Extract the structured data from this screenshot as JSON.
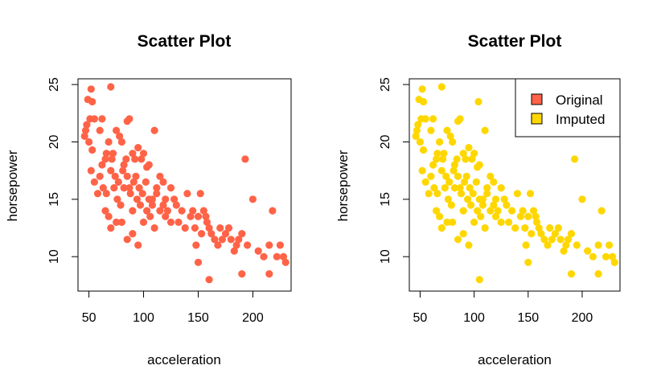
{
  "chart_data": [
    {
      "type": "scatter",
      "title": "Scatter Plot",
      "xlabel": "acceleration",
      "ylabel": "horsepower",
      "xlim": [
        40,
        235
      ],
      "ylim": [
        7,
        25.5
      ],
      "xticks": [
        50,
        100,
        150,
        200
      ],
      "yticks": [
        10,
        15,
        20,
        25
      ],
      "grid": false,
      "series": [
        {
          "color": "#FF6347",
          "points": [
            [
              46,
              20.5
            ],
            [
              47,
              21
            ],
            [
              48,
              21.5
            ],
            [
              49,
              23.7
            ],
            [
              52,
              24.6
            ],
            [
              53,
              23.5
            ],
            [
              51,
              22
            ],
            [
              53,
              19.3
            ],
            [
              55,
              22
            ],
            [
              50,
              20
            ],
            [
              52,
              17.5
            ],
            [
              55,
              16.5
            ],
            [
              58,
              15.5
            ],
            [
              60,
              21
            ],
            [
              62,
              22
            ],
            [
              65,
              18.5
            ],
            [
              68,
              20
            ],
            [
              70,
              24.8
            ],
            [
              72,
              19
            ],
            [
              75,
              21
            ],
            [
              78,
              20.5
            ],
            [
              80,
              20
            ],
            [
              82,
              18
            ],
            [
              85,
              21.8
            ],
            [
              87,
              22
            ],
            [
              90,
              19
            ],
            [
              92,
              18.5
            ],
            [
              95,
              19.5
            ],
            [
              98,
              18.5
            ],
            [
              100,
              19
            ],
            [
              103,
              17.8
            ],
            [
              105,
              18
            ],
            [
              108,
              15
            ],
            [
              110,
              21
            ],
            [
              112,
              16
            ],
            [
              115,
              17
            ],
            [
              118,
              16.5
            ],
            [
              120,
              15
            ],
            [
              125,
              16
            ],
            [
              130,
              14.5
            ],
            [
              135,
              14
            ],
            [
              140,
              15.5
            ],
            [
              145,
              14
            ],
            [
              150,
              13.5
            ],
            [
              152,
              15.5
            ],
            [
              155,
              14
            ],
            [
              158,
              13
            ],
            [
              160,
              12.5
            ],
            [
              165,
              11.5
            ],
            [
              170,
              12.5
            ],
            [
              175,
              12
            ],
            [
              180,
              11.5
            ],
            [
              185,
              11
            ],
            [
              190,
              12
            ],
            [
              193,
              18.5
            ],
            [
              195,
              11
            ],
            [
              200,
              15
            ],
            [
              205,
              10.5
            ],
            [
              210,
              10
            ],
            [
              215,
              11
            ],
            [
              218,
              14
            ],
            [
              222,
              10
            ],
            [
              225,
              11
            ],
            [
              228,
              10
            ],
            [
              230,
              9.5
            ],
            [
              60,
              17
            ],
            [
              63,
              16
            ],
            [
              66,
              15.5
            ],
            [
              70,
              17.5
            ],
            [
              73,
              16
            ],
            [
              76,
              15
            ],
            [
              79,
              14.5
            ],
            [
              82,
              16
            ],
            [
              85,
              17
            ],
            [
              88,
              15.5
            ],
            [
              91,
              16.5
            ],
            [
              94,
              15
            ],
            [
              97,
              14.5
            ],
            [
              100,
              13
            ],
            [
              103,
              14
            ],
            [
              106,
              13.5
            ],
            [
              110,
              12.5
            ],
            [
              115,
              14
            ],
            [
              120,
              13.5
            ],
            [
              125,
              13
            ],
            [
              70,
              12.5
            ],
            [
              80,
              13
            ],
            [
              85,
              11.5
            ],
            [
              90,
              12
            ],
            [
              95,
              11
            ],
            [
              148,
              11
            ],
            [
              150,
              9.5
            ],
            [
              160,
              8
            ],
            [
              190,
              8.5
            ],
            [
              215,
              8.5
            ],
            [
              65,
              14
            ],
            [
              68,
              13.5
            ],
            [
              75,
              13
            ],
            [
              62,
              18
            ],
            [
              66,
              19
            ],
            [
              71,
              18.5
            ],
            [
              74,
              17
            ],
            [
              77,
              16.5
            ],
            [
              81,
              17.5
            ],
            [
              84,
              18.5
            ],
            [
              87,
              16
            ],
            [
              90,
              14
            ],
            [
              93,
              17
            ],
            [
              96,
              16
            ],
            [
              99,
              15.5
            ],
            [
              102,
              16.5
            ],
            [
              105,
              15
            ],
            [
              108,
              14.5
            ],
            [
              112,
              15.5
            ],
            [
              118,
              14.5
            ],
            [
              122,
              14
            ],
            [
              128,
              15
            ],
            [
              132,
              13
            ],
            [
              138,
              12.5
            ],
            [
              143,
              13.5
            ],
            [
              147,
              12.5
            ],
            [
              153,
              12
            ],
            [
              157,
              13.5
            ],
            [
              162,
              12
            ],
            [
              168,
              11
            ],
            [
              172,
              11.5
            ],
            [
              178,
              12.5
            ],
            [
              183,
              10.5
            ],
            [
              187,
              11.5
            ]
          ]
        }
      ]
    },
    {
      "type": "scatter",
      "title": "Scatter Plot",
      "xlabel": "acceleration",
      "ylabel": "horsepower",
      "xlim": [
        40,
        235
      ],
      "ylim": [
        7,
        25.5
      ],
      "xticks": [
        50,
        100,
        150,
        200
      ],
      "yticks": [
        10,
        15,
        20,
        25
      ],
      "grid": false,
      "legend": {
        "position": "top-right",
        "items": [
          {
            "label": "Original",
            "color": "#FF6347"
          },
          {
            "label": "Imputed",
            "color": "#FFD700"
          }
        ]
      },
      "series": [
        {
          "color": "#FFD700",
          "points": [
            [
              46,
              20.5
            ],
            [
              47,
              21
            ],
            [
              48,
              21.5
            ],
            [
              49,
              23.7
            ],
            [
              52,
              24.6
            ],
            [
              53,
              23.5
            ],
            [
              51,
              22
            ],
            [
              53,
              19.3
            ],
            [
              55,
              22
            ],
            [
              50,
              20
            ],
            [
              52,
              17.5
            ],
            [
              55,
              16.5
            ],
            [
              58,
              15.5
            ],
            [
              60,
              21
            ],
            [
              62,
              22
            ],
            [
              65,
              18.5
            ],
            [
              68,
              20
            ],
            [
              70,
              24.8
            ],
            [
              72,
              19
            ],
            [
              75,
              21
            ],
            [
              78,
              20.5
            ],
            [
              80,
              20
            ],
            [
              82,
              18
            ],
            [
              85,
              21.8
            ],
            [
              87,
              22
            ],
            [
              90,
              19
            ],
            [
              92,
              18.5
            ],
            [
              95,
              19.5
            ],
            [
              98,
              18.5
            ],
            [
              100,
              19
            ],
            [
              103,
              17.8
            ],
            [
              105,
              18
            ],
            [
              104,
              23.5
            ],
            [
              108,
              15
            ],
            [
              110,
              21
            ],
            [
              112,
              16
            ],
            [
              115,
              17
            ],
            [
              118,
              16.5
            ],
            [
              120,
              15
            ],
            [
              125,
              16
            ],
            [
              130,
              14.5
            ],
            [
              135,
              14
            ],
            [
              140,
              15.5
            ],
            [
              145,
              14
            ],
            [
              150,
              13.5
            ],
            [
              152,
              15.5
            ],
            [
              155,
              14
            ],
            [
              158,
              13
            ],
            [
              160,
              12.5
            ],
            [
              165,
              11.5
            ],
            [
              170,
              12.5
            ],
            [
              175,
              12
            ],
            [
              180,
              11.5
            ],
            [
              185,
              11
            ],
            [
              190,
              12
            ],
            [
              193,
              18.5
            ],
            [
              195,
              11
            ],
            [
              200,
              15
            ],
            [
              205,
              10.5
            ],
            [
              210,
              10
            ],
            [
              215,
              11
            ],
            [
              218,
              14
            ],
            [
              222,
              10
            ],
            [
              225,
              11
            ],
            [
              228,
              10
            ],
            [
              230,
              9.5
            ],
            [
              60,
              17
            ],
            [
              63,
              16
            ],
            [
              66,
              15.5
            ],
            [
              70,
              17.5
            ],
            [
              73,
              16
            ],
            [
              76,
              15
            ],
            [
              79,
              14.5
            ],
            [
              82,
              16
            ],
            [
              85,
              17
            ],
            [
              88,
              15.5
            ],
            [
              91,
              16.5
            ],
            [
              94,
              15
            ],
            [
              97,
              14.5
            ],
            [
              100,
              13
            ],
            [
              103,
              14
            ],
            [
              106,
              13.5
            ],
            [
              110,
              12.5
            ],
            [
              115,
              14
            ],
            [
              120,
              13.5
            ],
            [
              125,
              13
            ],
            [
              70,
              12.5
            ],
            [
              80,
              13
            ],
            [
              85,
              11.5
            ],
            [
              90,
              12
            ],
            [
              95,
              11
            ],
            [
              148,
              11
            ],
            [
              150,
              9.5
            ],
            [
              105,
              8
            ],
            [
              190,
              8.5
            ],
            [
              215,
              8.5
            ],
            [
              65,
              14
            ],
            [
              68,
              13.5
            ],
            [
              75,
              13
            ],
            [
              62,
              18
            ],
            [
              66,
              19
            ],
            [
              71,
              18.5
            ],
            [
              74,
              17
            ],
            [
              77,
              16.5
            ],
            [
              81,
              17.5
            ],
            [
              84,
              18.5
            ],
            [
              87,
              16
            ],
            [
              90,
              14
            ],
            [
              93,
              17
            ],
            [
              96,
              16
            ],
            [
              99,
              15.5
            ],
            [
              102,
              16.5
            ],
            [
              105,
              15
            ],
            [
              108,
              14.5
            ],
            [
              112,
              15.5
            ],
            [
              118,
              14.5
            ],
            [
              122,
              14
            ],
            [
              128,
              15
            ],
            [
              132,
              13
            ],
            [
              138,
              12.5
            ],
            [
              143,
              13.5
            ],
            [
              147,
              12.5
            ],
            [
              153,
              12
            ],
            [
              157,
              13.5
            ],
            [
              162,
              12
            ],
            [
              168,
              11
            ],
            [
              172,
              11.5
            ],
            [
              178,
              12.5
            ],
            [
              183,
              10.5
            ],
            [
              187,
              11.5
            ]
          ]
        }
      ]
    }
  ]
}
